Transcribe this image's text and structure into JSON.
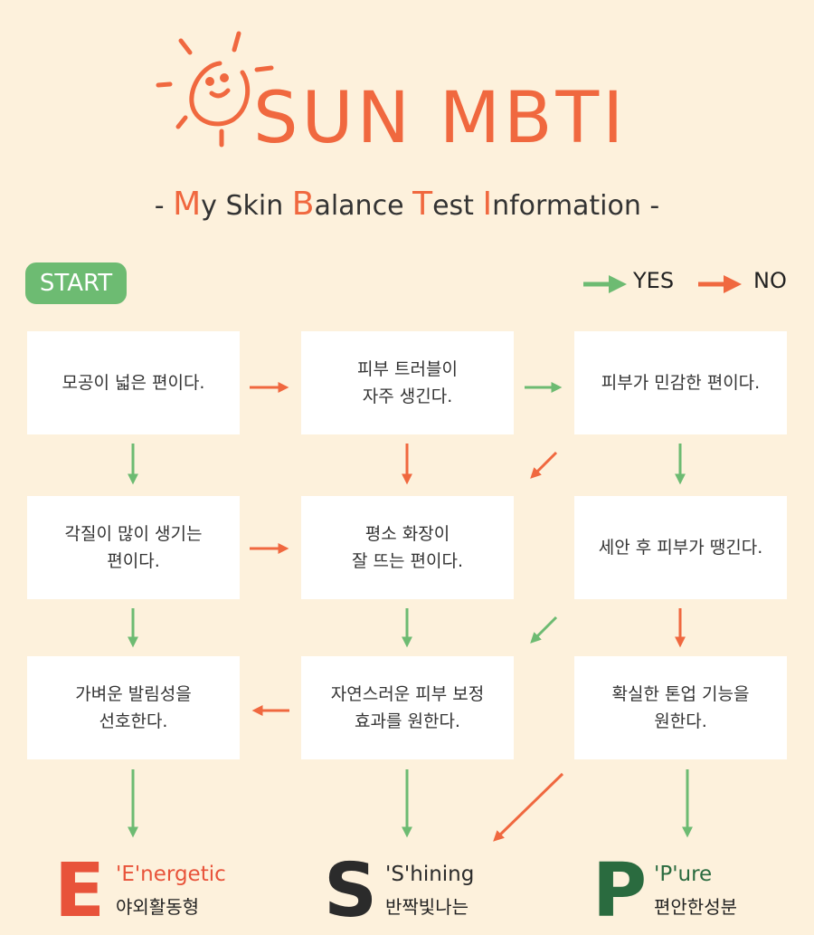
{
  "header": {
    "title": "SUN MBTI",
    "subtitle": {
      "dash_left": "- ",
      "parts": [
        {
          "hl": "M",
          "rest": "y Skin "
        },
        {
          "hl": "B",
          "rest": "alance "
        },
        {
          "hl": "T",
          "rest": "est "
        },
        {
          "hl": "I",
          "rest": "nformation"
        }
      ],
      "dash_right": " -"
    }
  },
  "start_label": "START",
  "legend": {
    "yes": "YES",
    "no": "NO"
  },
  "colors": {
    "background": "#fdf1dc",
    "orange": "#f0683f",
    "green": "#6dbb72",
    "dark_green": "#2a6b3f",
    "dark": "#2b2b2b",
    "red": "#e8533a"
  },
  "questions": [
    "모공이 넓은 편이다.",
    "피부 트러블이\n자주 생긴다.",
    "피부가 민감한 편이다.",
    "각질이 많이 생기는\n편이다.",
    "평소 화장이\n잘 뜨는 편이다.",
    "세안 후 피부가 땡긴다.",
    "가벼운 발림성을\n선호한다.",
    "자연스러운 피부 보정\n효과를 원한다.",
    "확실한 톤업 기능을\n원한다."
  ],
  "results": [
    {
      "letter": "E",
      "name": "'E'nergetic",
      "desc": "야외활동형"
    },
    {
      "letter": "S",
      "name": "'S'hining",
      "desc": "반짝빛나는"
    },
    {
      "letter": "P",
      "name": "'P'ure",
      "desc": "편안한성분"
    }
  ]
}
